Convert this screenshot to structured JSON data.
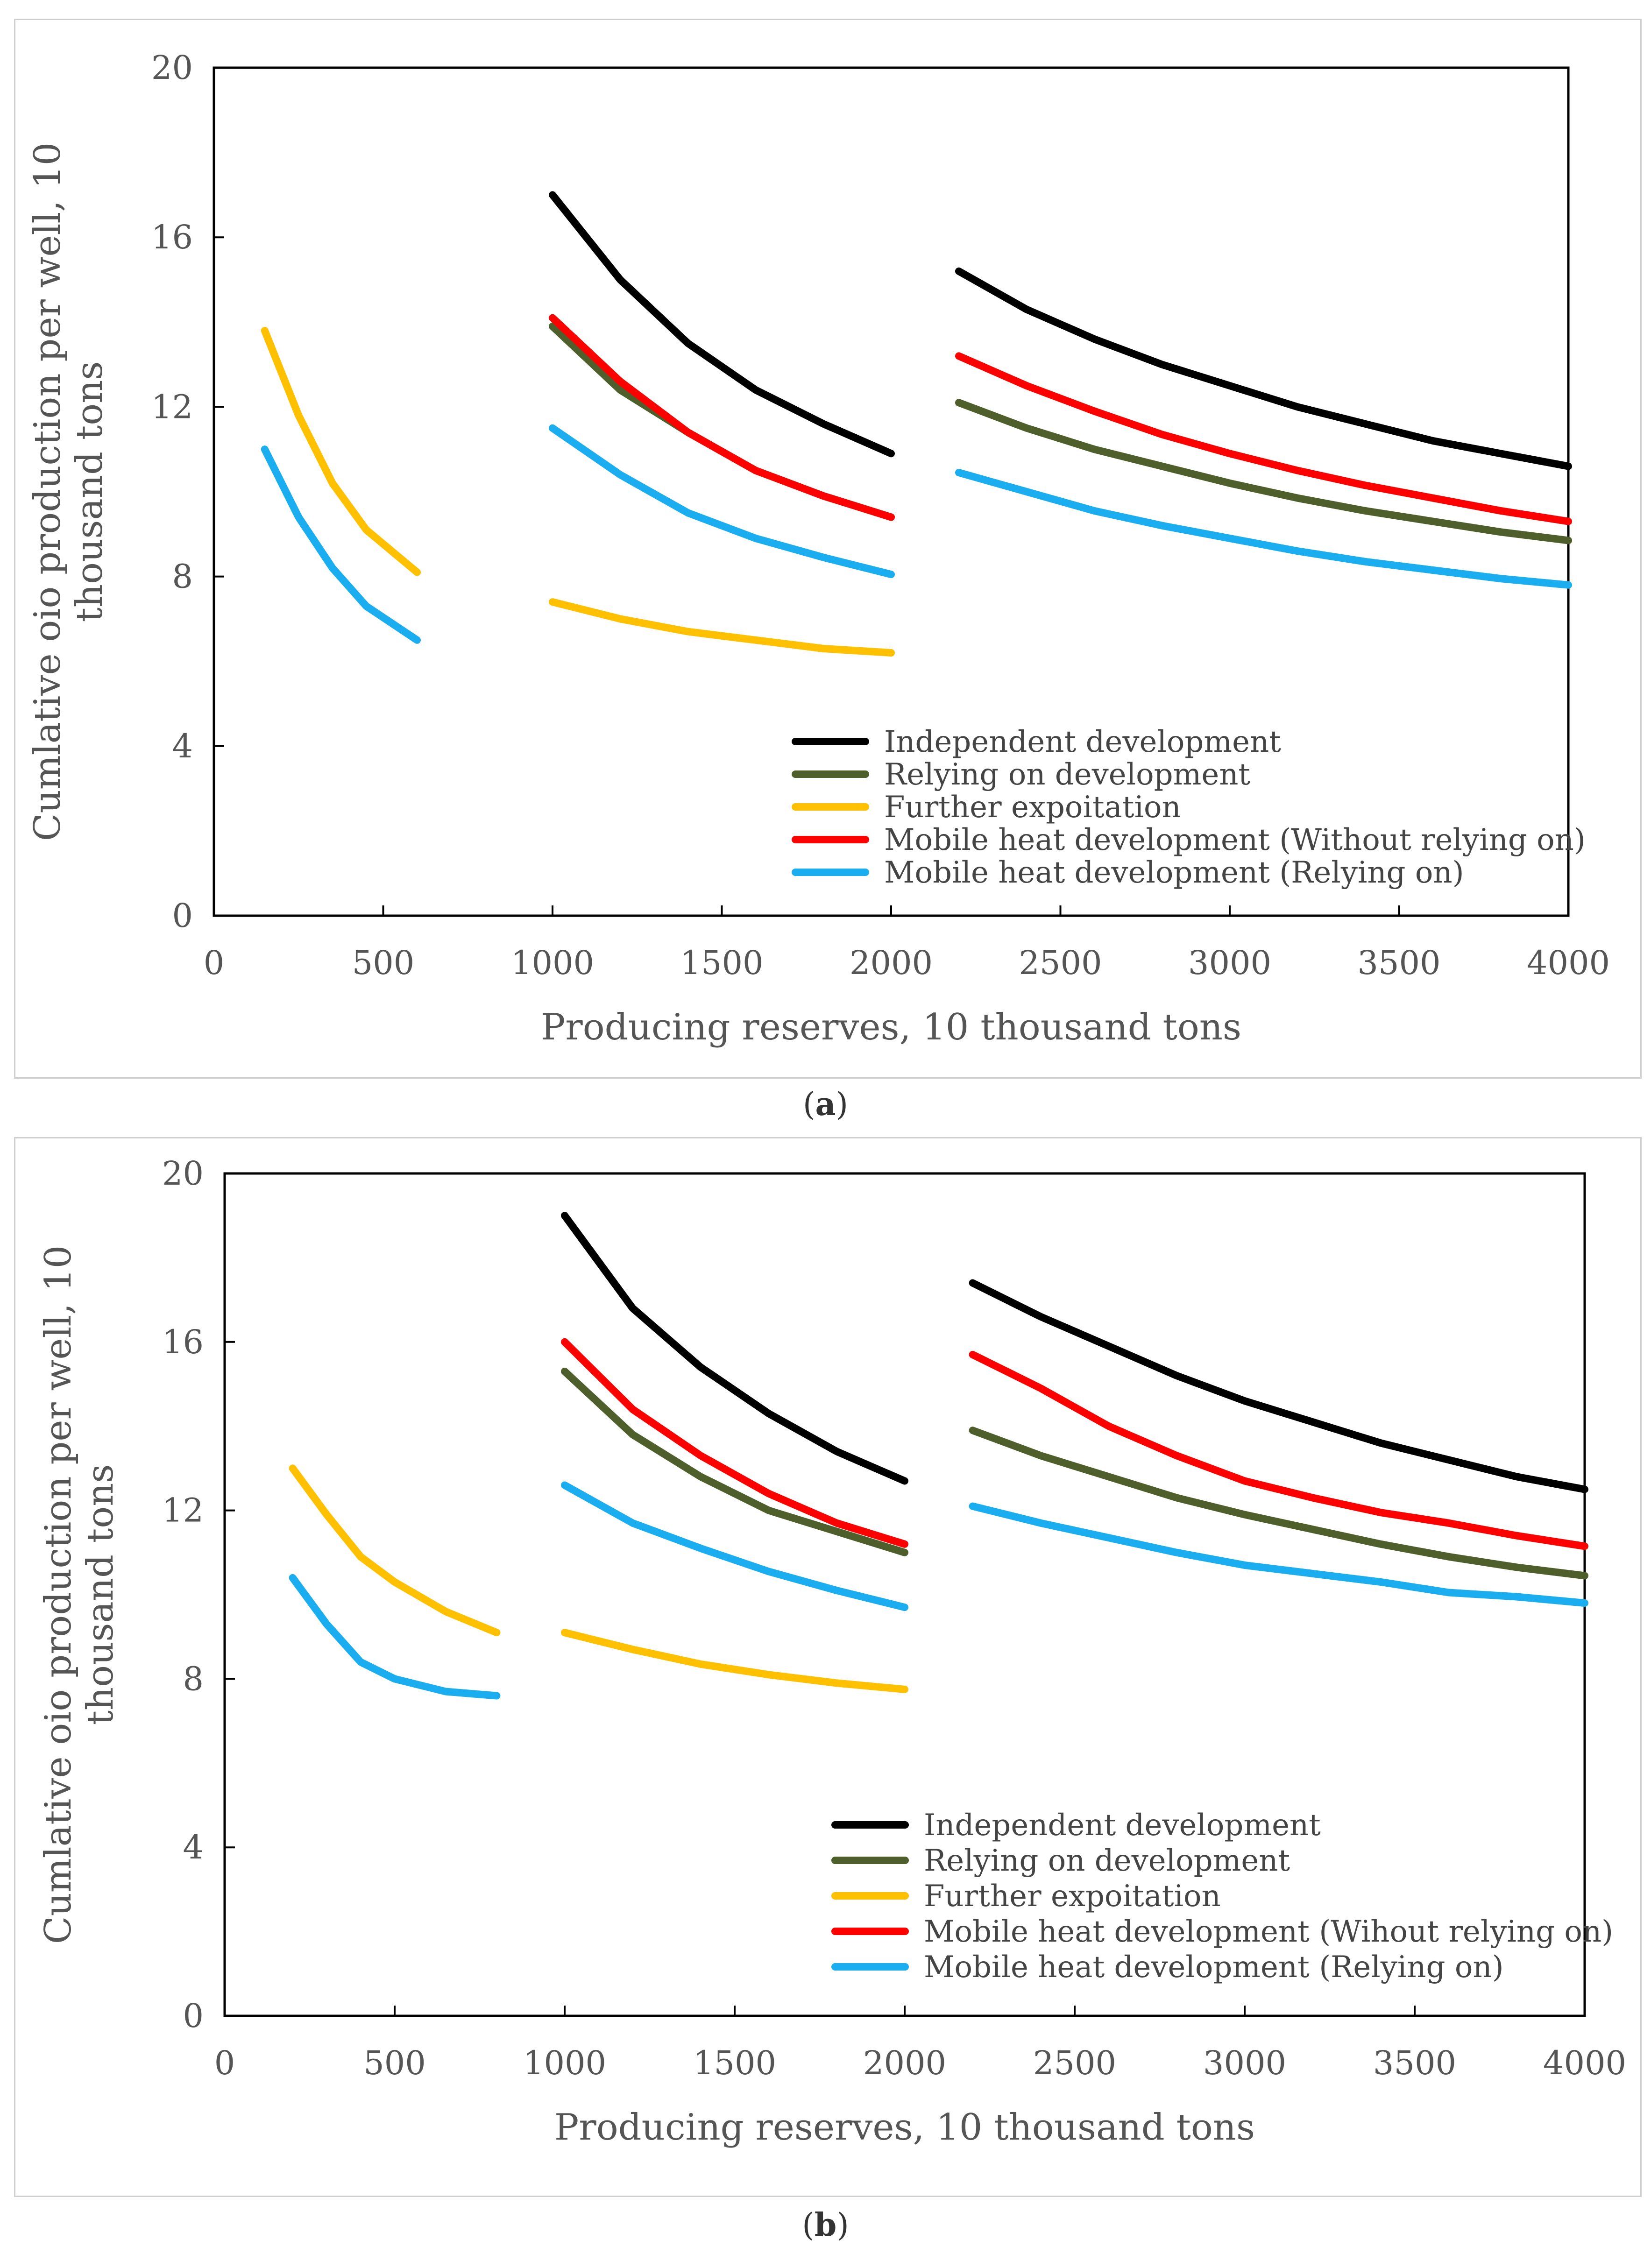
{
  "panels": [
    {
      "caption_letter": "a",
      "chart_data": {
        "type": "line",
        "xlabel": "Producing reserves, 10 thousand tons",
        "ylabel_line1": "Cumlative oio production per well, 10",
        "ylabel_line2": "thousand tons",
        "xlim": [
          0,
          4000
        ],
        "ylim": [
          0,
          20
        ],
        "xticks": [
          0,
          500,
          1000,
          1500,
          2000,
          2500,
          3000,
          3500,
          4000
        ],
        "yticks": [
          0,
          4,
          8,
          12,
          16,
          20
        ],
        "legend_position": "bottom-right",
        "series": [
          {
            "name": "Independent development",
            "color": "#000000",
            "segments": [
              [
                [
                  1000,
                  17.0
                ],
                [
                  1200,
                  15.0
                ],
                [
                  1400,
                  13.5
                ],
                [
                  1600,
                  12.4
                ],
                [
                  1800,
                  11.6
                ],
                [
                  2000,
                  10.9
                ]
              ],
              [
                [
                  2200,
                  15.2
                ],
                [
                  2400,
                  14.3
                ],
                [
                  2600,
                  13.6
                ],
                [
                  2800,
                  13.0
                ],
                [
                  3000,
                  12.5
                ],
                [
                  3200,
                  12.0
                ],
                [
                  3400,
                  11.6
                ],
                [
                  3600,
                  11.2
                ],
                [
                  3800,
                  10.9
                ],
                [
                  4000,
                  10.6
                ]
              ]
            ]
          },
          {
            "name": "Relying on development",
            "color": "#4e5f2c",
            "segments": [
              [
                [
                  1000,
                  13.9
                ],
                [
                  1200,
                  12.4
                ],
                [
                  1400,
                  11.4
                ],
                [
                  1600,
                  10.5
                ],
                [
                  1800,
                  9.9
                ],
                [
                  2000,
                  9.4
                ]
              ],
              [
                [
                  2200,
                  12.1
                ],
                [
                  2400,
                  11.5
                ],
                [
                  2600,
                  11.0
                ],
                [
                  2800,
                  10.6
                ],
                [
                  3000,
                  10.2
                ],
                [
                  3200,
                  9.85
                ],
                [
                  3400,
                  9.55
                ],
                [
                  3600,
                  9.3
                ],
                [
                  3800,
                  9.05
                ],
                [
                  4000,
                  8.85
                ]
              ]
            ]
          },
          {
            "name": "Further expoitation",
            "color": "#ffc000",
            "segments": [
              [
                [
                  150,
                  13.8
                ],
                [
                  250,
                  11.8
                ],
                [
                  350,
                  10.2
                ],
                [
                  450,
                  9.1
                ],
                [
                  600,
                  8.1
                ]
              ],
              [
                [
                  1000,
                  7.4
                ],
                [
                  1200,
                  7.0
                ],
                [
                  1400,
                  6.7
                ],
                [
                  1600,
                  6.5
                ],
                [
                  1800,
                  6.3
                ],
                [
                  2000,
                  6.2
                ]
              ]
            ]
          },
          {
            "name": "Mobile heat development (Without relying on)",
            "color": "#ff0000",
            "segments": [
              [
                [
                  1000,
                  14.1
                ],
                [
                  1200,
                  12.6
                ],
                [
                  1400,
                  11.4
                ],
                [
                  1600,
                  10.5
                ],
                [
                  1800,
                  9.9
                ],
                [
                  2000,
                  9.4
                ]
              ],
              [
                [
                  2200,
                  13.2
                ],
                [
                  2400,
                  12.5
                ],
                [
                  2600,
                  11.9
                ],
                [
                  2800,
                  11.35
                ],
                [
                  3000,
                  10.9
                ],
                [
                  3200,
                  10.5
                ],
                [
                  3400,
                  10.15
                ],
                [
                  3600,
                  9.85
                ],
                [
                  3800,
                  9.55
                ],
                [
                  4000,
                  9.3
                ]
              ]
            ]
          },
          {
            "name": "Mobile heat development (Relying on)",
            "color": "#1aadf0",
            "segments": [
              [
                [
                  150,
                  11.0
                ],
                [
                  250,
                  9.4
                ],
                [
                  350,
                  8.2
                ],
                [
                  450,
                  7.3
                ],
                [
                  600,
                  6.5
                ]
              ],
              [
                [
                  1000,
                  11.5
                ],
                [
                  1200,
                  10.4
                ],
                [
                  1400,
                  9.5
                ],
                [
                  1600,
                  8.9
                ],
                [
                  1800,
                  8.45
                ],
                [
                  2000,
                  8.05
                ]
              ],
              [
                [
                  2200,
                  10.45
                ],
                [
                  2400,
                  10.0
                ],
                [
                  2600,
                  9.55
                ],
                [
                  2800,
                  9.2
                ],
                [
                  3000,
                  8.9
                ],
                [
                  3200,
                  8.6
                ],
                [
                  3400,
                  8.35
                ],
                [
                  3600,
                  8.15
                ],
                [
                  3800,
                  7.95
                ],
                [
                  4000,
                  7.8
                ]
              ]
            ]
          }
        ]
      }
    },
    {
      "caption_letter": "b",
      "chart_data": {
        "type": "line",
        "xlabel": "Producing reserves, 10 thousand tons",
        "ylabel_line1": "Cumlative oio production per well, 10",
        "ylabel_line2": "thousand tons",
        "xlim": [
          0,
          4000
        ],
        "ylim": [
          0,
          20
        ],
        "xticks": [
          0,
          500,
          1000,
          1500,
          2000,
          2500,
          3000,
          3500,
          4000
        ],
        "yticks": [
          0,
          4,
          8,
          12,
          16,
          20
        ],
        "legend_position": "bottom-right",
        "series": [
          {
            "name": "Independent development",
            "color": "#000000",
            "segments": [
              [
                [
                  1000,
                  19.0
                ],
                [
                  1200,
                  16.8
                ],
                [
                  1400,
                  15.4
                ],
                [
                  1600,
                  14.3
                ],
                [
                  1800,
                  13.4
                ],
                [
                  2000,
                  12.7
                ]
              ],
              [
                [
                  2200,
                  17.4
                ],
                [
                  2400,
                  16.6
                ],
                [
                  2600,
                  15.9
                ],
                [
                  2800,
                  15.2
                ],
                [
                  3000,
                  14.6
                ],
                [
                  3200,
                  14.1
                ],
                [
                  3400,
                  13.6
                ],
                [
                  3600,
                  13.2
                ],
                [
                  3800,
                  12.8
                ],
                [
                  4000,
                  12.5
                ]
              ]
            ]
          },
          {
            "name": "Relying on development",
            "color": "#4e5f2c",
            "segments": [
              [
                [
                  1000,
                  15.3
                ],
                [
                  1200,
                  13.8
                ],
                [
                  1400,
                  12.8
                ],
                [
                  1600,
                  12.0
                ],
                [
                  1800,
                  11.5
                ],
                [
                  2000,
                  11.0
                ]
              ],
              [
                [
                  2200,
                  13.9
                ],
                [
                  2400,
                  13.3
                ],
                [
                  2600,
                  12.8
                ],
                [
                  2800,
                  12.3
                ],
                [
                  3000,
                  11.9
                ],
                [
                  3200,
                  11.55
                ],
                [
                  3400,
                  11.2
                ],
                [
                  3600,
                  10.9
                ],
                [
                  3800,
                  10.65
                ],
                [
                  4000,
                  10.45
                ]
              ]
            ]
          },
          {
            "name": "Further expoitation",
            "color": "#ffc000",
            "segments": [
              [
                [
                  200,
                  13.0
                ],
                [
                  300,
                  11.9
                ],
                [
                  400,
                  10.9
                ],
                [
                  500,
                  10.3
                ],
                [
                  650,
                  9.6
                ],
                [
                  800,
                  9.1
                ]
              ],
              [
                [
                  1000,
                  9.1
                ],
                [
                  1200,
                  8.7
                ],
                [
                  1400,
                  8.35
                ],
                [
                  1600,
                  8.1
                ],
                [
                  1800,
                  7.9
                ],
                [
                  2000,
                  7.75
                ]
              ]
            ]
          },
          {
            "name": "Mobile heat development (Wihout relying on)",
            "color": "#ff0000",
            "segments": [
              [
                [
                  1000,
                  16.0
                ],
                [
                  1200,
                  14.4
                ],
                [
                  1400,
                  13.3
                ],
                [
                  1600,
                  12.4
                ],
                [
                  1800,
                  11.7
                ],
                [
                  2000,
                  11.2
                ]
              ],
              [
                [
                  2200,
                  15.7
                ],
                [
                  2400,
                  14.9
                ],
                [
                  2600,
                  14.0
                ],
                [
                  2800,
                  13.3
                ],
                [
                  3000,
                  12.7
                ],
                [
                  3200,
                  12.3
                ],
                [
                  3400,
                  11.95
                ],
                [
                  3600,
                  11.7
                ],
                [
                  3800,
                  11.4
                ],
                [
                  4000,
                  11.15
                ]
              ]
            ]
          },
          {
            "name": "Mobile heat development (Relying on)",
            "color": "#1aadf0",
            "segments": [
              [
                [
                  200,
                  10.4
                ],
                [
                  300,
                  9.3
                ],
                [
                  400,
                  8.4
                ],
                [
                  500,
                  8.0
                ],
                [
                  650,
                  7.7
                ],
                [
                  800,
                  7.6
                ]
              ],
              [
                [
                  1000,
                  12.6
                ],
                [
                  1200,
                  11.7
                ],
                [
                  1400,
                  11.1
                ],
                [
                  1600,
                  10.55
                ],
                [
                  1800,
                  10.1
                ],
                [
                  2000,
                  9.7
                ]
              ],
              [
                [
                  2200,
                  12.1
                ],
                [
                  2400,
                  11.7
                ],
                [
                  2600,
                  11.35
                ],
                [
                  2800,
                  11.0
                ],
                [
                  3000,
                  10.7
                ],
                [
                  3200,
                  10.5
                ],
                [
                  3400,
                  10.3
                ],
                [
                  3600,
                  10.05
                ],
                [
                  3800,
                  9.95
                ],
                [
                  4000,
                  9.8
                ]
              ]
            ]
          }
        ]
      }
    }
  ]
}
